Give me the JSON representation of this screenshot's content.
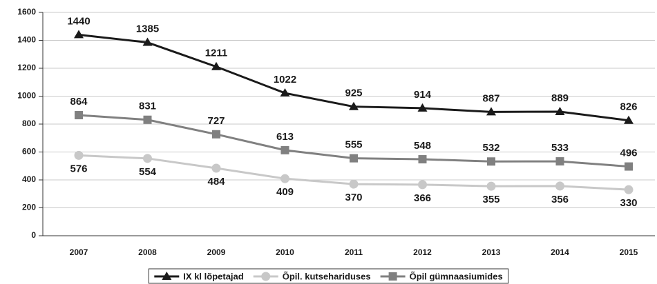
{
  "chart_data": {
    "type": "line",
    "categories": [
      "2007",
      "2008",
      "2009",
      "2010",
      "2011",
      "2012",
      "2013",
      "2014",
      "2015"
    ],
    "series": [
      {
        "name": "IX kl lõpetajad",
        "color": "#1a1a1a",
        "marker": "triangle",
        "values": [
          1440,
          1385,
          1211,
          1022,
          925,
          914,
          887,
          889,
          826
        ]
      },
      {
        "name": "Õpil. kutsehariduses",
        "color": "#c8c8c8",
        "marker": "circle",
        "values": [
          576,
          554,
          484,
          409,
          370,
          366,
          355,
          356,
          330
        ]
      },
      {
        "name": "Õpil gümnaasiumides",
        "color": "#808080",
        "marker": "square",
        "values": [
          864,
          831,
          727,
          613,
          555,
          548,
          532,
          533,
          496
        ]
      }
    ],
    "ylim": [
      0,
      1600
    ],
    "yticks": [
      0,
      200,
      400,
      600,
      800,
      1000,
      1200,
      1400,
      1600
    ],
    "grid": true,
    "legend": "bottom"
  }
}
